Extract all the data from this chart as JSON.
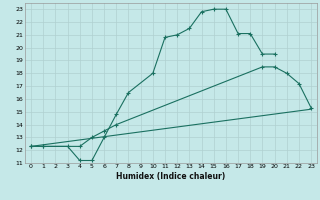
{
  "title": "",
  "xlabel": "Humidex (Indice chaleur)",
  "background_color": "#c5e8e8",
  "grid_color": "#b0d0d0",
  "line_color": "#1a7060",
  "xlim": [
    -0.5,
    23.5
  ],
  "ylim": [
    11,
    23.5
  ],
  "xticks": [
    0,
    1,
    2,
    3,
    4,
    5,
    6,
    7,
    8,
    9,
    10,
    11,
    12,
    13,
    14,
    15,
    16,
    17,
    18,
    19,
    20,
    21,
    22,
    23
  ],
  "yticks": [
    11,
    12,
    13,
    14,
    15,
    16,
    17,
    18,
    19,
    20,
    21,
    22,
    23
  ],
  "curve1_x": [
    0,
    1,
    3,
    4,
    5,
    6,
    7,
    8,
    10,
    11,
    12,
    13,
    14,
    15,
    16,
    17,
    18,
    19,
    20
  ],
  "curve1_y": [
    12.3,
    12.3,
    12.3,
    11.2,
    11.2,
    13.0,
    14.8,
    16.5,
    18.0,
    20.8,
    21.0,
    21.5,
    22.8,
    23.0,
    23.0,
    21.1,
    21.1,
    19.5,
    19.5
  ],
  "curve2_x": [
    0,
    1,
    4,
    5,
    6,
    7,
    19,
    20,
    21,
    22,
    23
  ],
  "curve2_y": [
    12.3,
    12.3,
    12.3,
    13.0,
    13.5,
    14.0,
    18.5,
    18.5,
    18.0,
    17.2,
    15.3
  ],
  "curve3_x": [
    0,
    23
  ],
  "curve3_y": [
    12.3,
    15.2
  ]
}
